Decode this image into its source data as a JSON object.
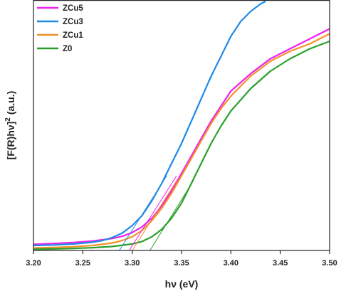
{
  "chart_data": {
    "type": "line",
    "title": "",
    "xlabel": "hν (eV)",
    "ylabel": "[F(R)hν]",
    "ylabel_superscript": "2",
    "ylabel_unit": "(a.u.)",
    "xlim": [
      3.2,
      3.5
    ],
    "ylim": [
      0,
      1
    ],
    "x_ticks": [
      "3.20",
      "3.25",
      "3.30",
      "3.35",
      "3.40",
      "3.45",
      "3.50"
    ],
    "y_ticks_shown": false,
    "grid": false,
    "legend_position": "top-left",
    "series": [
      {
        "name": "ZCu5",
        "color": "#ee22ee",
        "points": [
          [
            3.2,
            0.025
          ],
          [
            3.22,
            0.028
          ],
          [
            3.24,
            0.032
          ],
          [
            3.26,
            0.038
          ],
          [
            3.28,
            0.048
          ],
          [
            3.29,
            0.057
          ],
          [
            3.3,
            0.072
          ],
          [
            3.31,
            0.095
          ],
          [
            3.32,
            0.13
          ],
          [
            3.33,
            0.18
          ],
          [
            3.34,
            0.24
          ],
          [
            3.35,
            0.31
          ],
          [
            3.36,
            0.38
          ],
          [
            3.37,
            0.45
          ],
          [
            3.38,
            0.52
          ],
          [
            3.39,
            0.58
          ],
          [
            3.4,
            0.64
          ],
          [
            3.42,
            0.71
          ],
          [
            3.44,
            0.77
          ],
          [
            3.46,
            0.81
          ],
          [
            3.48,
            0.85
          ],
          [
            3.5,
            0.89
          ]
        ]
      },
      {
        "name": "ZCu3",
        "color": "#1f8ae6",
        "points": [
          [
            3.2,
            0.02
          ],
          [
            3.22,
            0.022
          ],
          [
            3.24,
            0.026
          ],
          [
            3.26,
            0.033
          ],
          [
            3.27,
            0.04
          ],
          [
            3.28,
            0.052
          ],
          [
            3.29,
            0.07
          ],
          [
            3.3,
            0.1
          ],
          [
            3.31,
            0.14
          ],
          [
            3.32,
            0.2
          ],
          [
            3.33,
            0.27
          ],
          [
            3.34,
            0.35
          ],
          [
            3.35,
            0.43
          ],
          [
            3.36,
            0.52
          ],
          [
            3.37,
            0.61
          ],
          [
            3.38,
            0.7
          ],
          [
            3.39,
            0.78
          ],
          [
            3.4,
            0.86
          ],
          [
            3.41,
            0.92
          ],
          [
            3.42,
            0.96
          ],
          [
            3.43,
            0.99
          ],
          [
            3.435,
            1.0
          ]
        ]
      },
      {
        "name": "ZCu1",
        "color": "#f4922a",
        "points": [
          [
            3.2,
            0.01
          ],
          [
            3.22,
            0.012
          ],
          [
            3.24,
            0.015
          ],
          [
            3.26,
            0.02
          ],
          [
            3.28,
            0.03
          ],
          [
            3.29,
            0.04
          ],
          [
            3.3,
            0.055
          ],
          [
            3.31,
            0.08
          ],
          [
            3.32,
            0.12
          ],
          [
            3.33,
            0.17
          ],
          [
            3.34,
            0.23
          ],
          [
            3.35,
            0.3
          ],
          [
            3.36,
            0.37
          ],
          [
            3.37,
            0.44
          ],
          [
            3.38,
            0.51
          ],
          [
            3.39,
            0.57
          ],
          [
            3.4,
            0.62
          ],
          [
            3.42,
            0.7
          ],
          [
            3.44,
            0.76
          ],
          [
            3.46,
            0.8
          ],
          [
            3.48,
            0.83
          ],
          [
            3.5,
            0.87
          ]
        ]
      },
      {
        "name": "Z0",
        "color": "#2aa02a",
        "points": [
          [
            3.2,
            0.005
          ],
          [
            3.22,
            0.006
          ],
          [
            3.24,
            0.008
          ],
          [
            3.26,
            0.011
          ],
          [
            3.28,
            0.016
          ],
          [
            3.3,
            0.026
          ],
          [
            3.31,
            0.036
          ],
          [
            3.32,
            0.055
          ],
          [
            3.33,
            0.085
          ],
          [
            3.34,
            0.13
          ],
          [
            3.35,
            0.19
          ],
          [
            3.36,
            0.27
          ],
          [
            3.37,
            0.35
          ],
          [
            3.38,
            0.43
          ],
          [
            3.39,
            0.5
          ],
          [
            3.4,
            0.56
          ],
          [
            3.42,
            0.65
          ],
          [
            3.44,
            0.72
          ],
          [
            3.46,
            0.77
          ],
          [
            3.48,
            0.81
          ],
          [
            3.5,
            0.84
          ]
        ]
      }
    ],
    "tangent_lines": [
      {
        "series": "ZCu3",
        "color": "#1f8ae6",
        "from": [
          3.287,
          0
        ],
        "to": [
          3.335,
          0.3
        ]
      },
      {
        "series": "ZCu5",
        "color": "#ee22ee",
        "from": [
          3.297,
          0
        ],
        "to": [
          3.345,
          0.3
        ]
      },
      {
        "series": "ZCu1",
        "color": "#f4922a",
        "from": [
          3.3,
          0
        ],
        "to": [
          3.345,
          0.28
        ]
      },
      {
        "series": "Z0",
        "color": "#2aa02a",
        "from": [
          3.318,
          0
        ],
        "to": [
          3.362,
          0.28
        ]
      }
    ]
  }
}
